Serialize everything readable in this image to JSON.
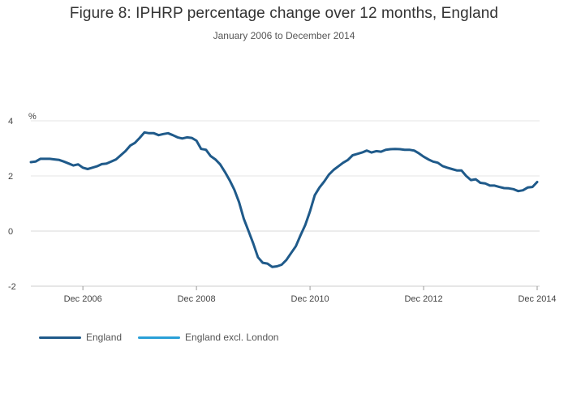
{
  "header": {
    "title": "Figure 8: IPHRP percentage change over 12 months, England",
    "subtitle": "January 2006 to December 2014"
  },
  "chart_data": {
    "type": "line",
    "title": "Figure 8: IPHRP percentage change over 12 months, England",
    "subtitle": "January 2006 to December 2014",
    "xlabel": "",
    "ylabel": "%",
    "ylim": [
      -2,
      4
    ],
    "yticks": [
      "4",
      "2",
      "0",
      "-2"
    ],
    "xticks": [
      "Dec 2006",
      "Dec 2008",
      "Dec 2010",
      "Dec 2012",
      "Dec 2014"
    ],
    "grid": true,
    "legend_position": "bottom-left",
    "start": "Jan 2006",
    "series": [
      {
        "name": "England",
        "color": "#1f5a8a",
        "values": [
          2.5,
          2.52,
          2.62,
          2.62,
          2.62,
          2.6,
          2.58,
          2.52,
          2.45,
          2.38,
          2.42,
          2.3,
          2.25,
          2.3,
          2.35,
          2.43,
          2.45,
          2.52,
          2.6,
          2.75,
          2.9,
          3.1,
          3.2,
          3.38,
          3.58,
          3.55,
          3.55,
          3.48,
          3.52,
          3.55,
          3.48,
          3.4,
          3.36,
          3.4,
          3.38,
          3.28,
          2.98,
          2.95,
          2.72,
          2.6,
          2.42,
          2.15,
          1.85,
          1.5,
          1.05,
          0.45,
          0.0,
          -0.45,
          -0.95,
          -1.15,
          -1.18,
          -1.3,
          -1.28,
          -1.22,
          -1.05,
          -0.8,
          -0.55,
          -0.15,
          0.22,
          0.72,
          1.3,
          1.58,
          1.8,
          2.05,
          2.22,
          2.35,
          2.48,
          2.58,
          2.75,
          2.8,
          2.85,
          2.92,
          2.85,
          2.9,
          2.88,
          2.95,
          2.97,
          2.98,
          2.97,
          2.95,
          2.95,
          2.92,
          2.82,
          2.7,
          2.6,
          2.52,
          2.48,
          2.36,
          2.3,
          2.25,
          2.2,
          2.2,
          2.0,
          1.85,
          1.88,
          1.75,
          1.73,
          1.65,
          1.65,
          1.6,
          1.56,
          1.55,
          1.52,
          1.45,
          1.48,
          1.58,
          1.6,
          1.78
        ]
      },
      {
        "name": "England excl. London",
        "color": "#2aa0d8",
        "values": []
      }
    ]
  }
}
